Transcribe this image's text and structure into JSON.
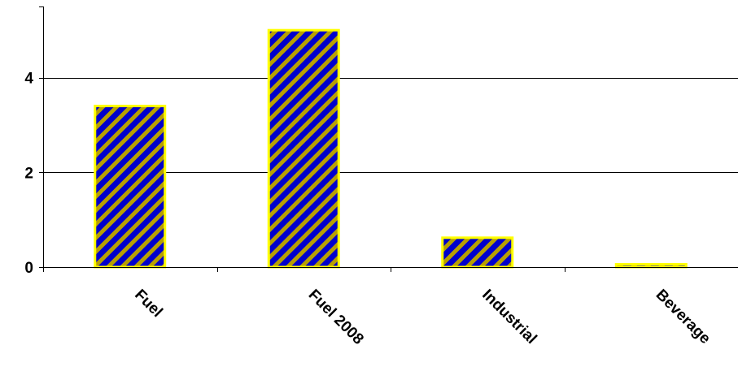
{
  "chart_data": {
    "type": "bar",
    "title": "",
    "xlabel": "",
    "ylabel": "",
    "categories": [
      "Fuel",
      "Fuel 2008",
      "Industrial",
      "Beverage"
    ],
    "values": [
      3.4,
      5.0,
      0.62,
      0.06
    ],
    "ylim": [
      0,
      5.5
    ],
    "yticks": [
      0,
      2,
      4
    ],
    "ytick_labels": [
      "0",
      "2",
      "4"
    ],
    "grid": true,
    "bar_fill": "#0000CC",
    "bar_hatch_color": "#B8A000",
    "bar_border": "#FFFF00",
    "axis_color": "#000000"
  }
}
